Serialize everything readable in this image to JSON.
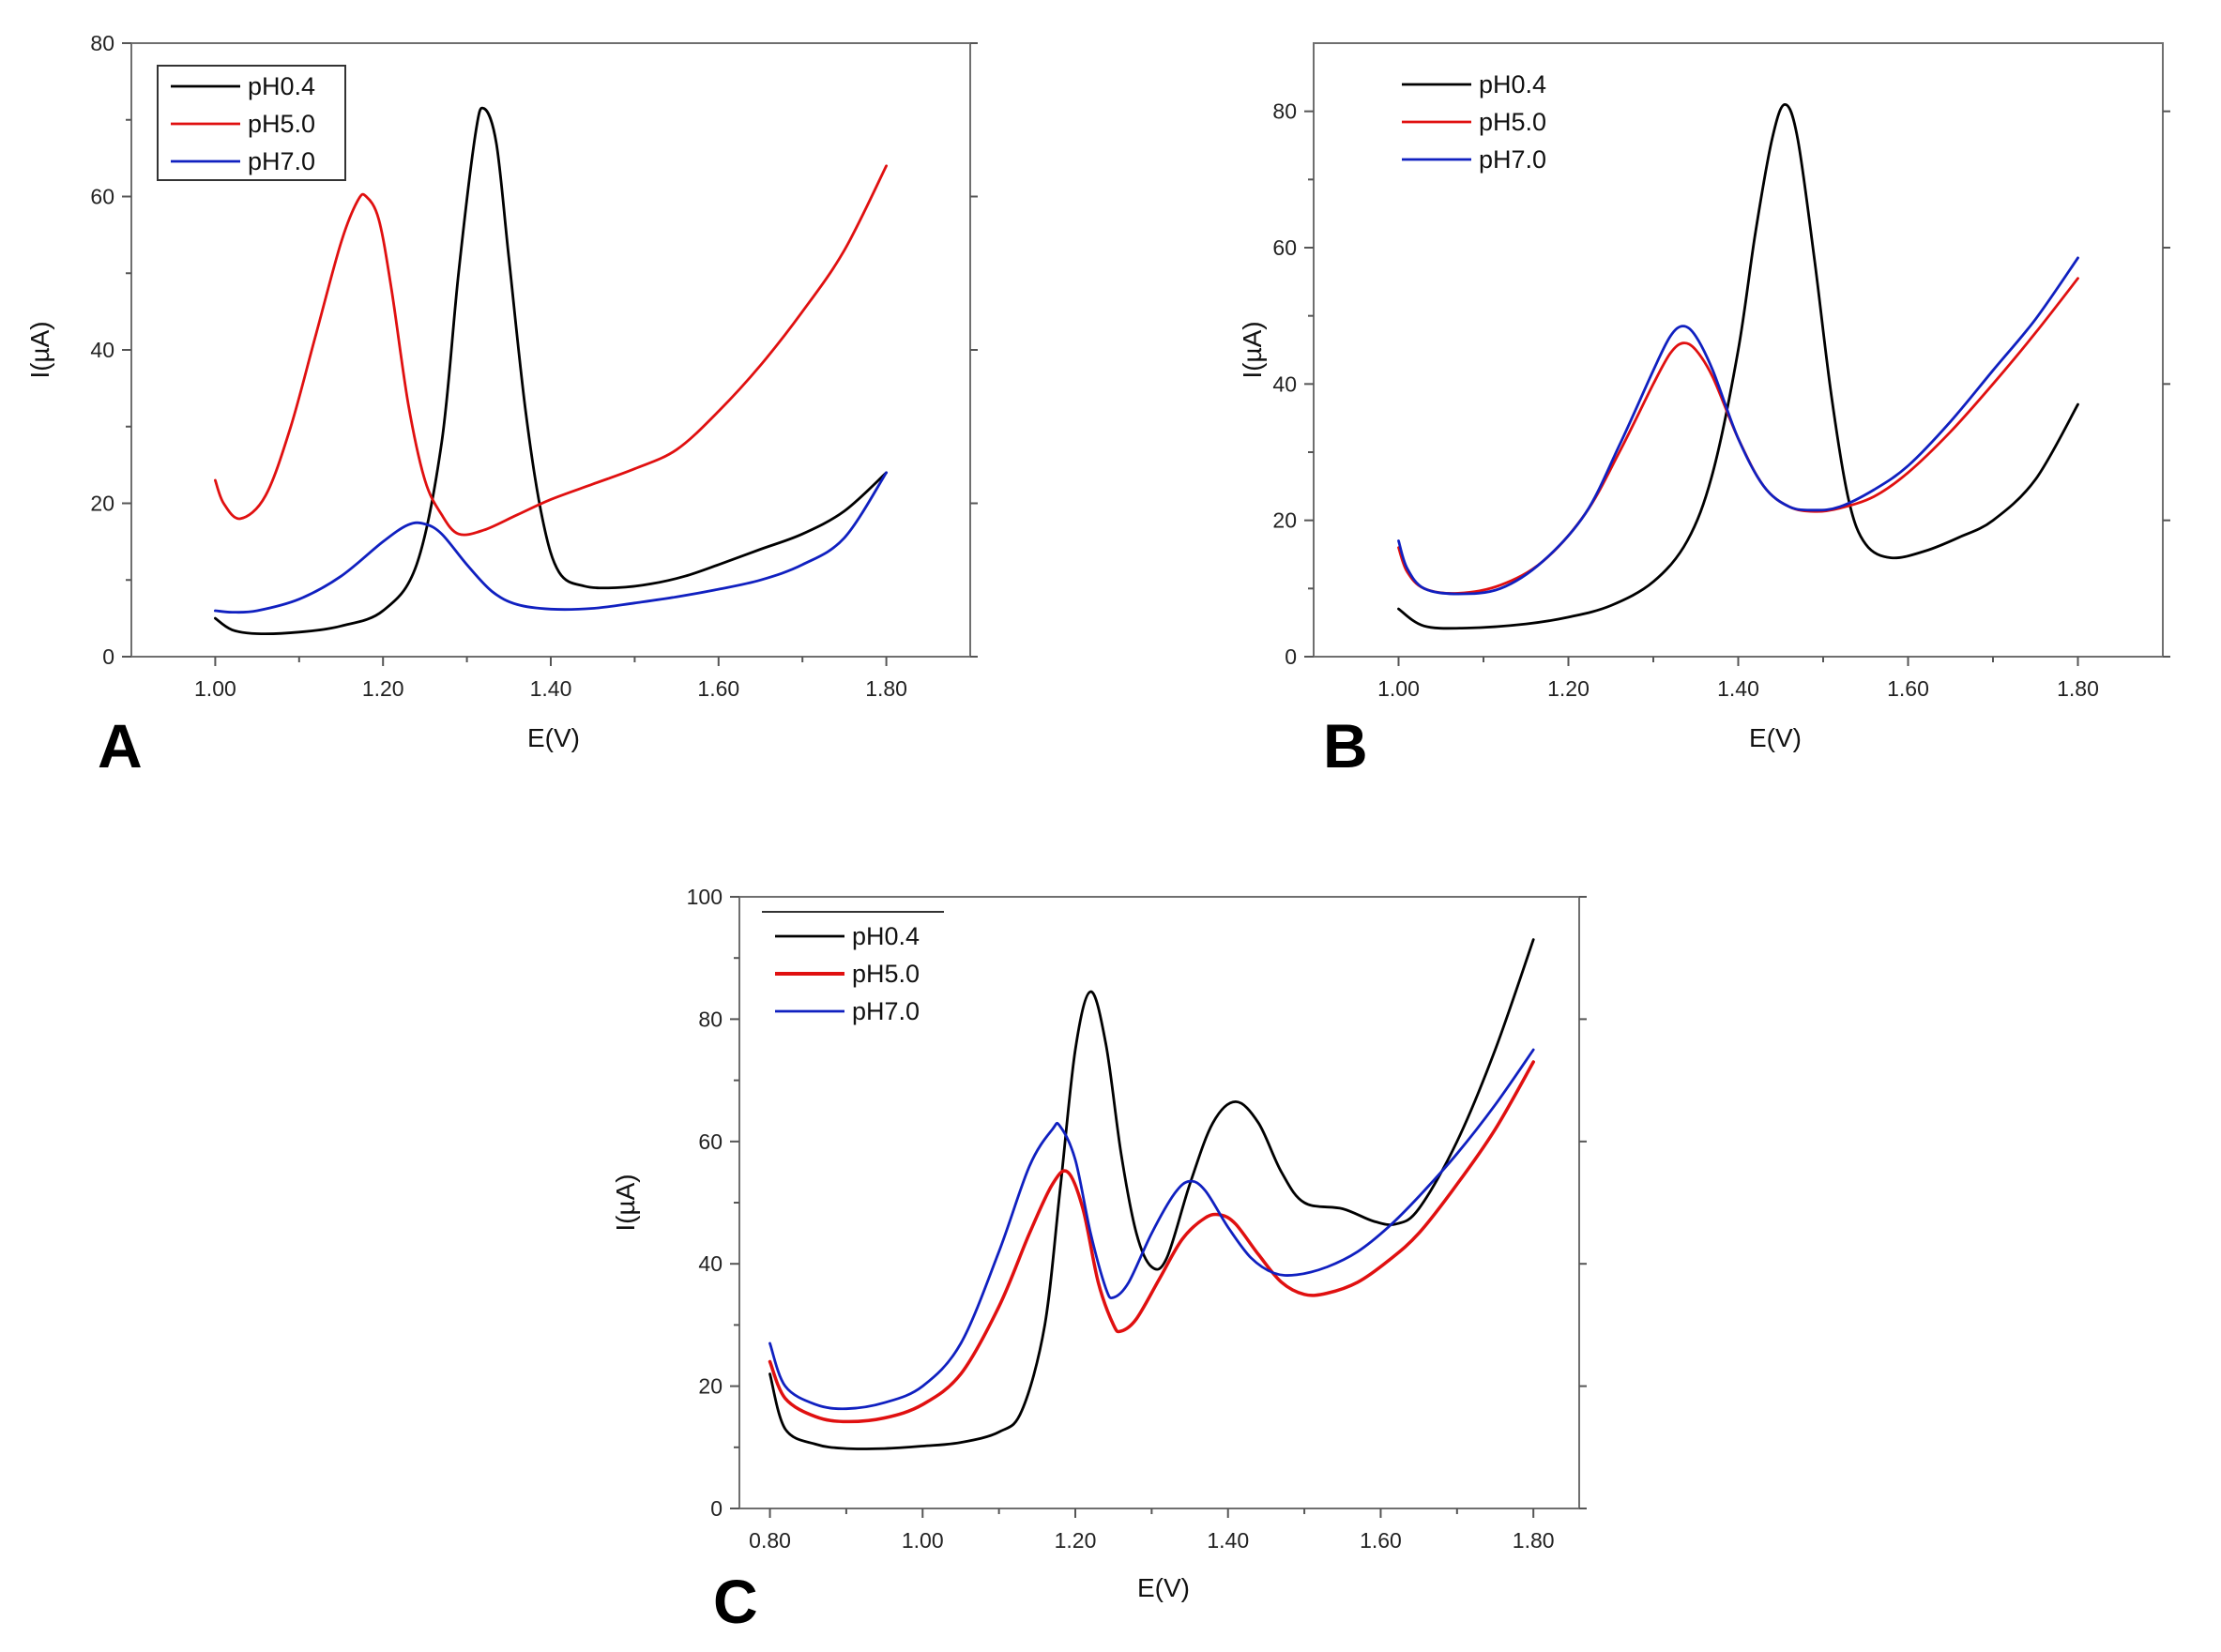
{
  "chart_data": [
    {
      "type": "line",
      "panel_label": "A",
      "xlabel": "E(V)",
      "ylabel": "I(µA)",
      "xlim": [
        0.9,
        1.9
      ],
      "ylim": [
        0,
        80
      ],
      "xticks": [
        "1.00",
        "1.20",
        "1.40",
        "1.60",
        "1.80"
      ],
      "yticks": [
        "0",
        "20",
        "40",
        "60",
        "80"
      ],
      "legend_position": "top-left",
      "series": [
        {
          "name": "pH0.4",
          "color": "#000000",
          "x": [
            1.0,
            1.02,
            1.05,
            1.1,
            1.15,
            1.2,
            1.24,
            1.27,
            1.29,
            1.31,
            1.32,
            1.335,
            1.35,
            1.37,
            1.39,
            1.41,
            1.44,
            1.48,
            1.52,
            1.56,
            1.6,
            1.65,
            1.7,
            1.75,
            1.8
          ],
          "y": [
            5,
            3.5,
            3,
            3.2,
            4,
            6,
            12,
            28,
            50,
            68,
            71.5,
            67,
            52,
            32,
            18,
            11,
            9.2,
            9,
            9.5,
            10.5,
            12,
            14,
            16,
            19,
            24
          ]
        },
        {
          "name": "pH5.0",
          "color": "#e01010",
          "x": [
            1.0,
            1.01,
            1.03,
            1.06,
            1.09,
            1.12,
            1.15,
            1.17,
            1.18,
            1.195,
            1.21,
            1.23,
            1.25,
            1.27,
            1.29,
            1.32,
            1.36,
            1.4,
            1.45,
            1.5,
            1.55,
            1.6,
            1.65,
            1.7,
            1.75,
            1.8
          ],
          "y": [
            23,
            20,
            18,
            21,
            30,
            42,
            54,
            59.5,
            60,
            57,
            48,
            33,
            23,
            18.5,
            16,
            16.5,
            18.5,
            20.5,
            22.5,
            24.5,
            27,
            32,
            38,
            45,
            53,
            64
          ]
        },
        {
          "name": "pH7.0",
          "color": "#1020c0",
          "x": [
            1.0,
            1.02,
            1.05,
            1.1,
            1.15,
            1.2,
            1.23,
            1.25,
            1.27,
            1.3,
            1.33,
            1.36,
            1.4,
            1.45,
            1.5,
            1.55,
            1.6,
            1.65,
            1.7,
            1.75,
            1.8
          ],
          "y": [
            6,
            5.8,
            6,
            7.5,
            10.5,
            15,
            17.2,
            17.3,
            16,
            12,
            8.5,
            6.8,
            6.2,
            6.3,
            7,
            7.8,
            8.8,
            10,
            12,
            15.5,
            24
          ]
        }
      ]
    },
    {
      "type": "line",
      "panel_label": "B",
      "xlabel": "E(V)",
      "ylabel": "I(µA)",
      "xlim": [
        0.9,
        1.9
      ],
      "ylim": [
        0,
        90
      ],
      "xticks": [
        "1.00",
        "1.20",
        "1.40",
        "1.60",
        "1.80"
      ],
      "yticks": [
        "0",
        "20",
        "40",
        "60",
        "80"
      ],
      "legend_position": "top-left",
      "series": [
        {
          "name": "pH0.4",
          "color": "#000000",
          "x": [
            1.0,
            1.03,
            1.08,
            1.15,
            1.2,
            1.25,
            1.3,
            1.34,
            1.37,
            1.4,
            1.42,
            1.44,
            1.455,
            1.47,
            1.49,
            1.51,
            1.53,
            1.55,
            1.58,
            1.62,
            1.66,
            1.7,
            1.75,
            1.8
          ],
          "y": [
            7,
            4.5,
            4.2,
            4.8,
            5.8,
            7.5,
            11,
            17,
            27,
            45,
            62,
            76,
            81,
            76,
            58,
            38,
            23,
            16.5,
            14.5,
            15.5,
            17.5,
            20,
            26,
            37
          ]
        },
        {
          "name": "pH5.0",
          "color": "#e01010",
          "x": [
            1.0,
            1.01,
            1.03,
            1.07,
            1.12,
            1.17,
            1.22,
            1.26,
            1.3,
            1.32,
            1.335,
            1.35,
            1.37,
            1.4,
            1.43,
            1.46,
            1.49,
            1.52,
            1.56,
            1.6,
            1.65,
            1.7,
            1.75,
            1.8
          ],
          "y": [
            16,
            12.5,
            10,
            9.3,
            10.5,
            14,
            21,
            30,
            40,
            44.5,
            46,
            45,
            41,
            32,
            25,
            22,
            21.3,
            21.8,
            23.5,
            27,
            33,
            40,
            47.5,
            55.5
          ]
        },
        {
          "name": "pH7.0",
          "color": "#1020c0",
          "x": [
            1.0,
            1.01,
            1.03,
            1.07,
            1.12,
            1.17,
            1.22,
            1.26,
            1.3,
            1.32,
            1.335,
            1.35,
            1.37,
            1.4,
            1.43,
            1.46,
            1.49,
            1.52,
            1.56,
            1.6,
            1.65,
            1.7,
            1.75,
            1.8
          ],
          "y": [
            17,
            13,
            10,
            9.2,
            10,
            14,
            21,
            31,
            42,
            47,
            48.5,
            47,
            42,
            32,
            25,
            22,
            21.5,
            22,
            24.5,
            28,
            34.5,
            42,
            49.5,
            58.5
          ]
        }
      ]
    },
    {
      "type": "line",
      "panel_label": "C",
      "xlabel": "E(V)",
      "ylabel": "I(µA)",
      "xlim": [
        0.76,
        1.86
      ],
      "ylim": [
        0,
        100
      ],
      "xticks": [
        "0.80",
        "1.00",
        "1.20",
        "1.40",
        "1.60",
        "1.80"
      ],
      "yticks": [
        "0",
        "20",
        "40",
        "60",
        "80",
        "100"
      ],
      "legend_position": "top-left",
      "series": [
        {
          "name": "pH0.4",
          "color": "#000000",
          "x": [
            0.8,
            0.82,
            0.86,
            0.9,
            0.95,
            1.0,
            1.05,
            1.1,
            1.13,
            1.16,
            1.18,
            1.2,
            1.22,
            1.24,
            1.26,
            1.28,
            1.3,
            1.32,
            1.35,
            1.38,
            1.41,
            1.44,
            1.47,
            1.5,
            1.55,
            1.59,
            1.62,
            1.65,
            1.7,
            1.75,
            1.8
          ],
          "y": [
            22,
            13,
            10.5,
            9.8,
            9.8,
            10.2,
            10.8,
            12.5,
            16,
            30,
            52,
            75,
            84.5,
            76,
            58,
            45,
            39.5,
            41,
            53,
            63,
            66.5,
            63,
            55,
            50,
            49,
            47,
            46.5,
            49,
            60,
            75,
            93
          ]
        },
        {
          "name": "pH5.0",
          "color": "#e01010",
          "x": [
            0.8,
            0.82,
            0.86,
            0.9,
            0.95,
            1.0,
            1.05,
            1.1,
            1.14,
            1.17,
            1.19,
            1.21,
            1.23,
            1.25,
            1.26,
            1.28,
            1.31,
            1.34,
            1.37,
            1.39,
            1.41,
            1.44,
            1.47,
            1.5,
            1.53,
            1.57,
            1.61,
            1.65,
            1.7,
            1.75,
            1.8
          ],
          "y": [
            24,
            18,
            15,
            14.2,
            14.8,
            17,
            22,
            33,
            45,
            53,
            55,
            49,
            37,
            30,
            29,
            31,
            37.5,
            44,
            47.5,
            48,
            46.5,
            41.5,
            37,
            35,
            35.2,
            37,
            40.5,
            45,
            53,
            62,
            73
          ]
        },
        {
          "name": "pH7.0",
          "color": "#1020c0",
          "x": [
            0.8,
            0.82,
            0.86,
            0.9,
            0.95,
            1.0,
            1.05,
            1.1,
            1.14,
            1.17,
            1.18,
            1.2,
            1.22,
            1.24,
            1.25,
            1.27,
            1.3,
            1.33,
            1.35,
            1.37,
            1.4,
            1.43,
            1.46,
            1.49,
            1.53,
            1.57,
            1.61,
            1.65,
            1.7,
            1.75,
            1.8
          ],
          "y": [
            27,
            20,
            17,
            16.3,
            17.3,
            20,
            27,
            42,
            56,
            62,
            62.5,
            57,
            45,
            36,
            34.5,
            37,
            45,
            51.5,
            53.5,
            52,
            46,
            41,
            38.5,
            38.2,
            39.5,
            42,
            46,
            51,
            58,
            66,
            75
          ]
        }
      ]
    }
  ]
}
